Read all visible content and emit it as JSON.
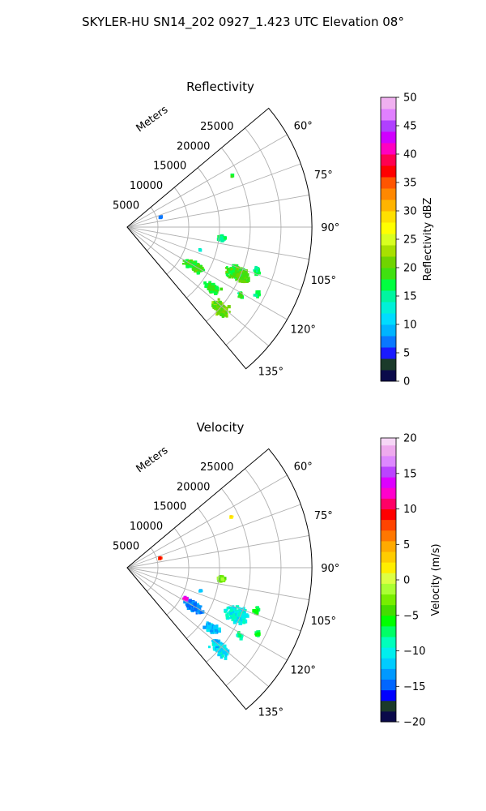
{
  "figure": {
    "suptitle": "SKYLER-HU  SN14_202  0927_1.423 UTC Elevation 08°"
  },
  "chart_data": [
    {
      "type": "heatmap",
      "subtype": "polar-sector",
      "title": "Reflectivity",
      "range_label": "Meters",
      "range_ticks": [
        5000,
        10000,
        15000,
        20000,
        25000
      ],
      "range_tick_labels": [
        "5000",
        "10000",
        "15000",
        "20000",
        "25000"
      ],
      "rlim": [
        0,
        30000
      ],
      "theta_range_deg": [
        50,
        140
      ],
      "theta_ticks_deg": [
        60,
        75,
        90,
        105,
        120,
        135
      ],
      "theta_tick_labels": [
        "60°",
        "75°",
        "90°",
        "105°",
        "120°",
        "135°"
      ],
      "grid": true,
      "colorbar": {
        "label": "Reflectivity dBZ",
        "min": 0,
        "max": 50,
        "ticks": [
          0,
          5,
          10,
          15,
          20,
          25,
          30,
          35,
          40,
          45,
          50
        ],
        "tick_labels": [
          "0",
          "5",
          "10",
          "15",
          "20",
          "25",
          "30",
          "35",
          "40",
          "45",
          "50"
        ],
        "stops": [
          [
            0,
            "#0a0a4a"
          ],
          [
            2,
            "#1b3a2a"
          ],
          [
            4,
            "#1a1aff"
          ],
          [
            6,
            "#0a78ff"
          ],
          [
            8,
            "#00b4ff"
          ],
          [
            10,
            "#00dcff"
          ],
          [
            12,
            "#00f0d8"
          ],
          [
            14,
            "#00f5a0"
          ],
          [
            16,
            "#00ff40"
          ],
          [
            18,
            "#40e010"
          ],
          [
            20,
            "#70d400"
          ],
          [
            22,
            "#a8e000"
          ],
          [
            24,
            "#d8ff20"
          ],
          [
            26,
            "#ffff00"
          ],
          [
            28,
            "#ffe000"
          ],
          [
            30,
            "#ffb400"
          ],
          [
            32,
            "#ff8800"
          ],
          [
            34,
            "#ff5500"
          ],
          [
            36,
            "#ff0000"
          ],
          [
            38,
            "#ff0050"
          ],
          [
            40,
            "#ff00c0"
          ],
          [
            42,
            "#d000ff"
          ],
          [
            44,
            "#b040ff"
          ],
          [
            46,
            "#e080ff"
          ],
          [
            48,
            "#f0b0f0"
          ],
          [
            50,
            "#fbe6fb"
          ]
        ]
      },
      "echoes": [
        {
          "az": 74.0,
          "r": 5600,
          "dr": 250,
          "daz": 1.2,
          "value": 8,
          "n": 6
        },
        {
          "az": 64.0,
          "r": 19000,
          "dr": 250,
          "daz": 0.6,
          "value": 17,
          "n": 3
        },
        {
          "az": 96.5,
          "r": 15400,
          "dr": 800,
          "daz": 2.2,
          "value": 16,
          "n": 40
        },
        {
          "az": 107.5,
          "r": 12500,
          "dr": 300,
          "daz": 0.8,
          "value": 14,
          "n": 3
        },
        {
          "az": 120.0,
          "r": 12500,
          "dr": 2000,
          "daz": 4.0,
          "value": 19,
          "n": 160
        },
        {
          "az": 113.0,
          "r": 19500,
          "dr": 2600,
          "daz": 4.5,
          "value": 19,
          "n": 200
        },
        {
          "az": 108.5,
          "r": 22200,
          "dr": 700,
          "daz": 2.0,
          "value": 16,
          "n": 25
        },
        {
          "az": 125.5,
          "r": 17000,
          "dr": 1700,
          "daz": 3.0,
          "value": 18,
          "n": 100
        },
        {
          "az": 131.0,
          "r": 20000,
          "dr": 2000,
          "daz": 3.5,
          "value": 21,
          "n": 150
        },
        {
          "az": 117.0,
          "r": 23800,
          "dr": 500,
          "daz": 1.5,
          "value": 16,
          "n": 15
        },
        {
          "az": 121.0,
          "r": 21500,
          "dr": 700,
          "daz": 1.5,
          "value": 17,
          "n": 15
        }
      ]
    },
    {
      "type": "heatmap",
      "subtype": "polar-sector",
      "title": "Velocity",
      "range_label": "Meters",
      "range_ticks": [
        5000,
        10000,
        15000,
        20000,
        25000
      ],
      "range_tick_labels": [
        "5000",
        "10000",
        "15000",
        "20000",
        "25000"
      ],
      "rlim": [
        0,
        30000
      ],
      "theta_range_deg": [
        50,
        140
      ],
      "theta_ticks_deg": [
        60,
        75,
        90,
        105,
        120,
        135
      ],
      "theta_tick_labels": [
        "60°",
        "75°",
        "90°",
        "105°",
        "120°",
        "135°"
      ],
      "grid": true,
      "colorbar": {
        "label": "Velocity (m/s)",
        "min": -20,
        "max": 20,
        "ticks": [
          -20,
          -15,
          -10,
          -5,
          0,
          5,
          10,
          15,
          20
        ],
        "tick_labels": [
          "−20",
          "−15",
          "−10",
          "−5",
          "0",
          "5",
          "10",
          "15",
          "20"
        ],
        "stops": [
          [
            -20,
            "#0a0a4a"
          ],
          [
            -18.5,
            "#1b3a2a"
          ],
          [
            -17,
            "#0000ff"
          ],
          [
            -15.5,
            "#0066ff"
          ],
          [
            -14,
            "#0099ff"
          ],
          [
            -12.5,
            "#00ccff"
          ],
          [
            -11,
            "#00eeee"
          ],
          [
            -9.5,
            "#00ffbb"
          ],
          [
            -8,
            "#00ff66"
          ],
          [
            -6.5,
            "#00ff00"
          ],
          [
            -5,
            "#44dd00"
          ],
          [
            -3.5,
            "#77ee00"
          ],
          [
            -2,
            "#aaff33"
          ],
          [
            -0.5,
            "#ddff44"
          ],
          [
            1,
            "#ffee00"
          ],
          [
            2.5,
            "#ffcc00"
          ],
          [
            4,
            "#ffaa00"
          ],
          [
            5.5,
            "#ff7700"
          ],
          [
            7,
            "#ff4400"
          ],
          [
            8.5,
            "#ff0000"
          ],
          [
            10,
            "#ff0066"
          ],
          [
            11.5,
            "#ff00cc"
          ],
          [
            13,
            "#dd00ff"
          ],
          [
            14.5,
            "#bb44ff"
          ],
          [
            16,
            "#dd88ff"
          ],
          [
            17.5,
            "#eeaaee"
          ],
          [
            19,
            "#f6d6f6"
          ],
          [
            20,
            "#fbe6fb"
          ]
        ]
      },
      "echoes": [
        {
          "az": 74.0,
          "r": 5600,
          "dr": 250,
          "daz": 1.2,
          "value": 9,
          "n": 6
        },
        {
          "az": 64.0,
          "r": 19000,
          "dr": 250,
          "daz": 0.6,
          "value": 3,
          "n": 3
        },
        {
          "az": 96.5,
          "r": 15400,
          "dr": 800,
          "daz": 2.2,
          "value": -3,
          "n": 40
        },
        {
          "az": 107.5,
          "r": 12500,
          "dr": 300,
          "daz": 0.8,
          "value": -12,
          "n": 3
        },
        {
          "az": 120.0,
          "r": 12500,
          "dr": 2000,
          "daz": 4.0,
          "value": -14,
          "n": 160
        },
        {
          "az": 118.0,
          "r": 10800,
          "dr": 500,
          "daz": 1.5,
          "value": 14,
          "n": 20
        },
        {
          "az": 113.0,
          "r": 19500,
          "dr": 2600,
          "daz": 4.5,
          "value": -10,
          "n": 200
        },
        {
          "az": 108.5,
          "r": 22200,
          "dr": 700,
          "daz": 2.0,
          "value": -6,
          "n": 25
        },
        {
          "az": 125.5,
          "r": 17000,
          "dr": 1700,
          "daz": 3.0,
          "value": -12,
          "n": 100
        },
        {
          "az": 131.0,
          "r": 20000,
          "dr": 2000,
          "daz": 3.5,
          "value": -11,
          "n": 150
        },
        {
          "az": 117.0,
          "r": 23800,
          "dr": 500,
          "daz": 1.5,
          "value": -6,
          "n": 15
        },
        {
          "az": 121.0,
          "r": 21500,
          "dr": 700,
          "daz": 1.5,
          "value": -8,
          "n": 15
        }
      ]
    }
  ]
}
